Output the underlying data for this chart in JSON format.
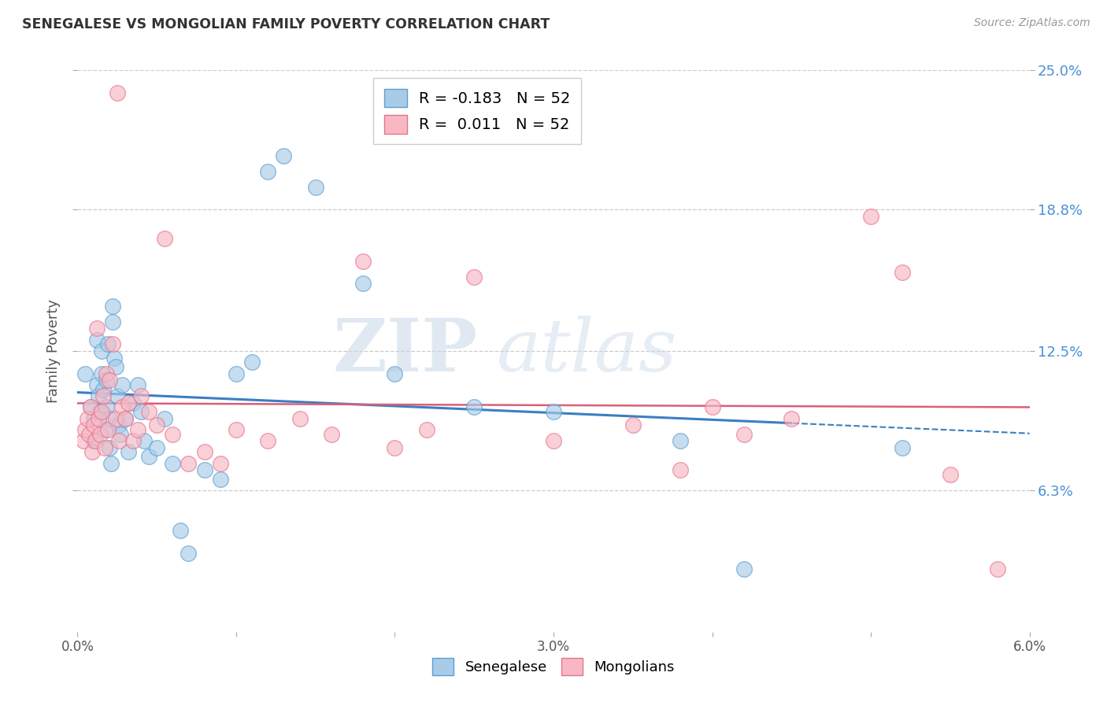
{
  "title": "SENEGALESE VS MONGOLIAN FAMILY POVERTY CORRELATION CHART",
  "source": "Source: ZipAtlas.com",
  "ylabel": "Family Poverty",
  "xlim": [
    0.0,
    6.0
  ],
  "ylim": [
    0.0,
    25.0
  ],
  "yticks": [
    6.3,
    12.5,
    18.8,
    25.0
  ],
  "ytick_labels": [
    "6.3%",
    "12.5%",
    "18.8%",
    "25.0%"
  ],
  "legend_blue_r": "R = -0.183",
  "legend_blue_n": "N = 52",
  "legend_pink_r": "R =  0.011",
  "legend_pink_n": "N = 52",
  "blue_color": "#a8cce8",
  "blue_edge": "#5b9fd4",
  "pink_color": "#f7b8c4",
  "pink_edge": "#e8728a",
  "line_blue": "#3a7fc1",
  "line_pink": "#d9607a",
  "watermark_zip": "ZIP",
  "watermark_atlas": "atlas",
  "blue_scatter_x": [
    0.05,
    0.08,
    0.1,
    0.1,
    0.12,
    0.12,
    0.13,
    0.14,
    0.15,
    0.15,
    0.16,
    0.17,
    0.18,
    0.18,
    0.19,
    0.2,
    0.2,
    0.21,
    0.22,
    0.22,
    0.23,
    0.24,
    0.25,
    0.26,
    0.27,
    0.28,
    0.3,
    0.32,
    0.35,
    0.38,
    0.4,
    0.42,
    0.45,
    0.5,
    0.55,
    0.6,
    0.65,
    0.7,
    0.8,
    0.9,
    1.0,
    1.1,
    1.2,
    1.3,
    1.5,
    1.8,
    2.0,
    2.5,
    3.0,
    3.8,
    4.2,
    5.2
  ],
  "blue_scatter_y": [
    11.5,
    10.0,
    9.5,
    8.5,
    13.0,
    11.0,
    10.5,
    9.8,
    12.5,
    11.5,
    10.8,
    9.0,
    11.2,
    10.0,
    12.8,
    9.5,
    8.2,
    7.5,
    14.5,
    13.8,
    12.2,
    11.8,
    10.5,
    9.2,
    8.8,
    11.0,
    9.5,
    8.0,
    10.2,
    11.0,
    9.8,
    8.5,
    7.8,
    8.2,
    9.5,
    7.5,
    4.5,
    3.5,
    7.2,
    6.8,
    11.5,
    12.0,
    20.5,
    21.2,
    19.8,
    15.5,
    11.5,
    10.0,
    9.8,
    8.5,
    2.8,
    8.2
  ],
  "pink_scatter_x": [
    0.04,
    0.05,
    0.06,
    0.07,
    0.08,
    0.09,
    0.1,
    0.11,
    0.12,
    0.13,
    0.14,
    0.15,
    0.16,
    0.17,
    0.18,
    0.19,
    0.2,
    0.22,
    0.24,
    0.26,
    0.28,
    0.3,
    0.32,
    0.35,
    0.38,
    0.4,
    0.45,
    0.5,
    0.6,
    0.7,
    0.8,
    1.0,
    1.2,
    1.4,
    1.6,
    1.8,
    2.0,
    2.2,
    2.5,
    3.0,
    3.5,
    4.0,
    4.2,
    4.5,
    5.0,
    5.2,
    5.5,
    5.8,
    0.25,
    0.55,
    0.9,
    3.8
  ],
  "pink_scatter_y": [
    8.5,
    9.0,
    9.5,
    8.8,
    10.0,
    8.0,
    9.2,
    8.5,
    13.5,
    9.5,
    8.8,
    9.8,
    10.5,
    8.2,
    11.5,
    9.0,
    11.2,
    12.8,
    9.5,
    8.5,
    10.0,
    9.5,
    10.2,
    8.5,
    9.0,
    10.5,
    9.8,
    9.2,
    8.8,
    7.5,
    8.0,
    9.0,
    8.5,
    9.5,
    8.8,
    16.5,
    8.2,
    9.0,
    15.8,
    8.5,
    9.2,
    10.0,
    8.8,
    9.5,
    18.5,
    16.0,
    7.0,
    2.8,
    24.0,
    17.5,
    7.5,
    7.2
  ]
}
